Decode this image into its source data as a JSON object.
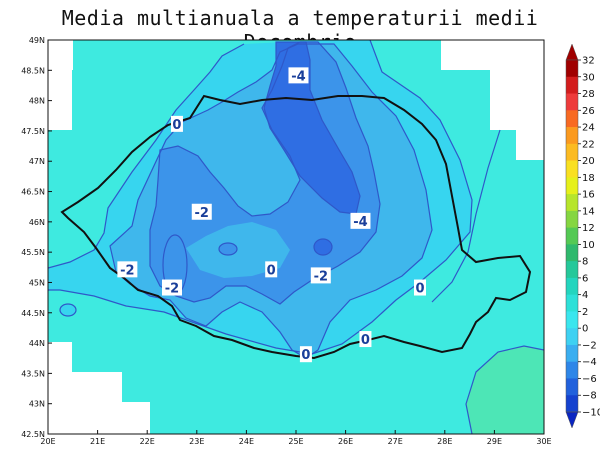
{
  "title": "Media multianuala a temperaturii medii Decembrie",
  "map": {
    "lon_ticks": [
      "20E",
      "21E",
      "22E",
      "23E",
      "24E",
      "25E",
      "26E",
      "27E",
      "28E",
      "29E",
      "30E"
    ],
    "lat_ticks": [
      "49N",
      "48.5N",
      "48N",
      "47.5N",
      "47N",
      "46.5N",
      "46N",
      "45.5N",
      "45N",
      "44.5N",
      "44N",
      "43.5N",
      "43N",
      "42.5N"
    ],
    "contour_labels": [
      {
        "text": "-4",
        "lon": 25.05,
        "lat": 48.4
      },
      {
        "text": "0",
        "lon": 22.6,
        "lat": 47.6
      },
      {
        "text": "-2",
        "lon": 23.1,
        "lat": 46.15
      },
      {
        "text": "-4",
        "lon": 26.3,
        "lat": 46.0
      },
      {
        "text": "-2",
        "lon": 21.6,
        "lat": 45.2
      },
      {
        "text": "0",
        "lon": 24.5,
        "lat": 45.2
      },
      {
        "text": "-2",
        "lon": 25.5,
        "lat": 45.1
      },
      {
        "text": "-2",
        "lon": 22.5,
        "lat": 44.9
      },
      {
        "text": "0",
        "lon": 27.5,
        "lat": 44.9
      },
      {
        "text": "0",
        "lon": 26.4,
        "lat": 44.05
      },
      {
        "text": "0",
        "lon": 25.2,
        "lat": 43.8
      }
    ]
  },
  "colorbar": {
    "labels": [
      "32",
      "30",
      "28",
      "26",
      "24",
      "22",
      "20",
      "18",
      "16",
      "14",
      "12",
      "10",
      "8",
      "6",
      "4",
      "2",
      "0",
      "−2",
      "−4",
      "−6",
      "−8",
      "−10"
    ],
    "colors": [
      "#a00000",
      "#d31d1d",
      "#ee3b3b",
      "#f86a22",
      "#fb9a1f",
      "#fcbb21",
      "#f9e021",
      "#e6f01a",
      "#b7e52b",
      "#85d641",
      "#54c954",
      "#2fb96d",
      "#25c89a",
      "#23d5be",
      "#2de0d8",
      "#3ae6ee",
      "#3ed1f2",
      "#3aaef0",
      "#2e86e8",
      "#2161dc",
      "#1542cf",
      "#0a25c1"
    ]
  },
  "colors": {
    "zone_ge_2": "#3eeae0",
    "zone_0_2": "#37d5ef",
    "zone_m2_0": "#3fb7ec",
    "zone_m4_m2": "#3c94ea",
    "zone_lt_m4": "#2f6ee3",
    "zone_warm": "#4de6b6",
    "contour_line": "#2f58c9",
    "border": "#111111"
  }
}
